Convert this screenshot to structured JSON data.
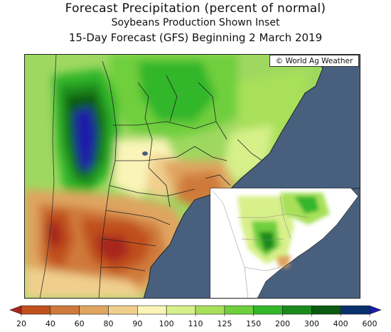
{
  "titles": {
    "main": "Forecast Precipitation (percent of normal)",
    "sub": "Soybeans Production Shown Inset",
    "period": "15-Day Forecast (GFS) Beginning 2 March 2019"
  },
  "credit": "© World Ag Weather",
  "map": {
    "ocean_color": "#48607e",
    "inset_background": "#ffffff"
  },
  "legend": {
    "labels": [
      "20",
      "40",
      "60",
      "80",
      "90",
      "100",
      "110",
      "125",
      "150",
      "200",
      "300",
      "400",
      "600"
    ],
    "colors": [
      "#a8251a",
      "#c0501c",
      "#cf7a3a",
      "#dfa561",
      "#f0cf8d",
      "#fbf4b8",
      "#d7f08a",
      "#a8e05a",
      "#6fcf3d",
      "#33b62a",
      "#1b8a1d",
      "#0a5a10",
      "#08306b",
      "#1b1ba8"
    ]
  }
}
